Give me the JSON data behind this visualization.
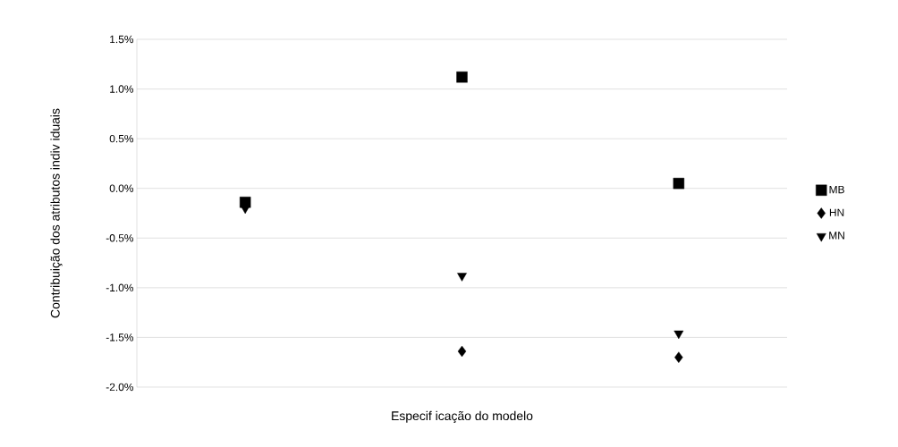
{
  "chart_data": {
    "type": "scatter",
    "xlabel": "Especif icação do modelo",
    "ylabel": "Contribuição dos atributos indiv iduais",
    "categories": [
      null,
      null,
      null
    ],
    "series": [
      {
        "name": "MB",
        "color": "#000000",
        "marker": "square",
        "values": [
          -0.14,
          1.12,
          0.05
        ]
      },
      {
        "name": "HN",
        "color": "#000000",
        "marker": "diamond",
        "values": [
          null,
          -1.64,
          -1.7
        ]
      },
      {
        "name": "MN",
        "color": "#000000",
        "marker": "triangle",
        "values": [
          -0.2,
          -0.88,
          -1.46
        ]
      }
    ],
    "ylim": [
      -2.0,
      1.5
    ],
    "yticks": [
      {
        "value": -2.0,
        "label": "-2.0%"
      },
      {
        "value": -1.5,
        "label": "-1.5%"
      },
      {
        "value": -1.0,
        "label": "-1.0%"
      },
      {
        "value": -0.5,
        "label": "-0.5%"
      },
      {
        "value": 0.0,
        "label": "0.0%"
      },
      {
        "value": 0.5,
        "label": "0.5%"
      },
      {
        "value": 1.0,
        "label": "1.0%"
      },
      {
        "value": 1.5,
        "label": "1.5%"
      }
    ],
    "grid": "y",
    "legend": "right"
  }
}
